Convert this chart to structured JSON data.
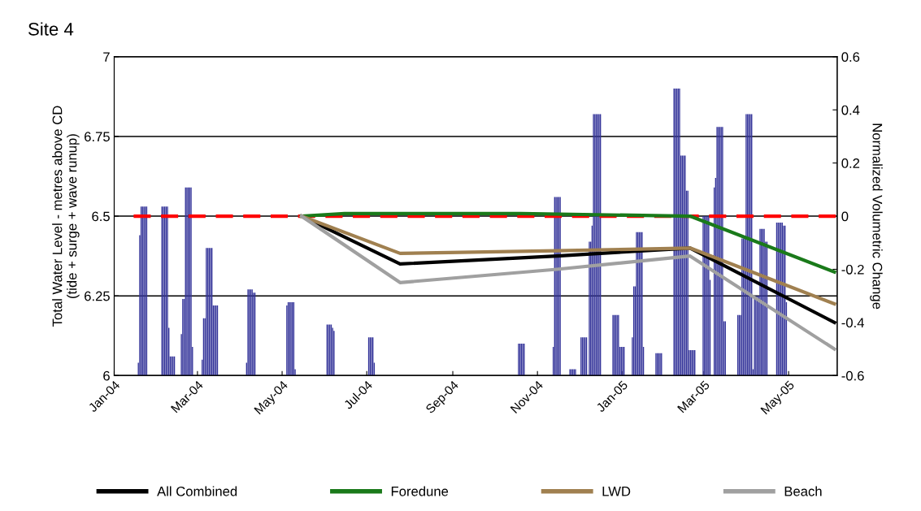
{
  "chart_data": {
    "type": "line",
    "title": "Site 4",
    "ylabel": "Total Water Level - metres above CD\n(tide + surge + wave runup)",
    "y2label": "Normalized Volumetric Change",
    "xlim": [
      "2004-01-01",
      "2005-06-05"
    ],
    "xticks": [
      {
        "value": "2004-01-01",
        "label": "Jan-04"
      },
      {
        "value": "2004-03-01",
        "label": "Mar-04"
      },
      {
        "value": "2004-05-01",
        "label": "May-04"
      },
      {
        "value": "2004-07-01",
        "label": "Jul-04"
      },
      {
        "value": "2004-09-01",
        "label": "Sep-04"
      },
      {
        "value": "2004-11-01",
        "label": "Nov-04"
      },
      {
        "value": "2005-01-01",
        "label": "Jan-05"
      },
      {
        "value": "2005-03-01",
        "label": "Mar-05"
      },
      {
        "value": "2005-05-01",
        "label": "May-05"
      }
    ],
    "ylim": [
      6,
      7
    ],
    "yticks": [
      6,
      6.25,
      6.5,
      6.75,
      7
    ],
    "y2lim": [
      -0.6,
      0.6
    ],
    "y2ticks": [
      -0.6,
      -0.4,
      -0.2,
      0,
      0.2,
      0.4,
      0.6
    ],
    "grid": "y",
    "legend": "bottom",
    "series": [
      {
        "type": "bar",
        "axis": "y",
        "color": "#333399",
        "x": [
          "2004-01-18",
          "2004-01-19",
          "2004-01-20",
          "2004-01-21",
          "2004-01-22",
          "2004-01-23",
          "2004-01-24",
          "2004-02-04",
          "2004-02-05",
          "2004-02-06",
          "2004-02-07",
          "2004-02-08",
          "2004-02-09",
          "2004-02-10",
          "2004-02-11",
          "2004-02-12",
          "2004-02-13",
          "2004-02-18",
          "2004-02-19",
          "2004-02-20",
          "2004-02-21",
          "2004-02-22",
          "2004-02-23",
          "2004-02-24",
          "2004-02-25",
          "2004-02-26",
          "2004-03-04",
          "2004-03-05",
          "2004-03-06",
          "2004-03-07",
          "2004-03-08",
          "2004-03-09",
          "2004-03-10",
          "2004-03-11",
          "2004-03-12",
          "2004-03-13",
          "2004-03-14",
          "2004-03-15",
          "2004-04-05",
          "2004-04-06",
          "2004-04-07",
          "2004-04-08",
          "2004-04-09",
          "2004-04-10",
          "2004-04-11",
          "2004-05-04",
          "2004-05-05",
          "2004-05-06",
          "2004-05-07",
          "2004-05-08",
          "2004-05-09",
          "2004-05-10",
          "2004-06-02",
          "2004-06-03",
          "2004-06-04",
          "2004-06-05",
          "2004-06-06",
          "2004-06-07",
          "2004-07-02",
          "2004-07-03",
          "2004-07-04",
          "2004-07-05",
          "2004-07-06",
          "2004-10-18",
          "2004-10-19",
          "2004-10-20",
          "2004-10-21",
          "2004-10-22",
          "2004-11-12",
          "2004-11-13",
          "2004-11-14",
          "2004-11-15",
          "2004-11-16",
          "2004-11-17",
          "2004-11-24",
          "2004-11-25",
          "2004-11-26",
          "2004-11-27",
          "2004-11-28",
          "2004-12-02",
          "2004-12-03",
          "2004-12-04",
          "2004-12-05",
          "2004-12-06",
          "2004-12-08",
          "2004-12-09",
          "2004-12-10",
          "2004-12-11",
          "2004-12-12",
          "2004-12-13",
          "2004-12-14",
          "2004-12-15",
          "2004-12-16",
          "2004-12-25",
          "2004-12-26",
          "2004-12-27",
          "2004-12-28",
          "2004-12-29",
          "2004-12-30",
          "2004-12-31",
          "2005-01-01",
          "2005-01-02",
          "2005-01-08",
          "2005-01-09",
          "2005-01-10",
          "2005-01-11",
          "2005-01-12",
          "2005-01-13",
          "2005-01-14",
          "2005-01-15",
          "2005-01-16",
          "2005-01-25",
          "2005-01-26",
          "2005-01-27",
          "2005-01-28",
          "2005-01-29",
          "2005-02-07",
          "2005-02-08",
          "2005-02-09",
          "2005-02-10",
          "2005-02-11",
          "2005-02-12",
          "2005-02-13",
          "2005-02-14",
          "2005-02-15",
          "2005-02-16",
          "2005-02-17",
          "2005-02-18",
          "2005-02-19",
          "2005-02-20",
          "2005-02-21",
          "2005-02-22",
          "2005-02-28",
          "2005-03-01",
          "2005-03-02",
          "2005-03-03",
          "2005-03-04",
          "2005-03-05",
          "2005-03-08",
          "2005-03-09",
          "2005-03-10",
          "2005-03-11",
          "2005-03-12",
          "2005-03-13",
          "2005-03-14",
          "2005-03-15",
          "2005-03-16",
          "2005-03-25",
          "2005-03-26",
          "2005-03-27",
          "2005-03-28",
          "2005-03-29",
          "2005-03-30",
          "2005-03-31",
          "2005-04-01",
          "2005-04-02",
          "2005-04-03",
          "2005-04-04",
          "2005-04-05",
          "2005-04-06",
          "2005-04-07",
          "2005-04-08",
          "2005-04-09",
          "2005-04-10",
          "2005-04-11",
          "2005-04-12",
          "2005-04-13",
          "2005-04-14",
          "2005-04-15",
          "2005-04-22",
          "2005-04-23",
          "2005-04-24",
          "2005-04-25",
          "2005-04-26",
          "2005-04-27",
          "2005-04-28",
          "2005-04-29"
        ],
        "values": [
          6.04,
          6.44,
          6.53,
          6.53,
          6.53,
          6.53,
          6.53,
          6.53,
          6.53,
          6.53,
          6.53,
          6.53,
          6.15,
          6.06,
          6.06,
          6.06,
          6.06,
          6.13,
          6.24,
          6.24,
          6.59,
          6.59,
          6.59,
          6.59,
          6.59,
          6.09,
          6.05,
          6.18,
          6.18,
          6.4,
          6.4,
          6.4,
          6.4,
          6.4,
          6.22,
          6.22,
          6.22,
          6.22,
          6.04,
          6.27,
          6.27,
          6.27,
          6.27,
          6.26,
          6.26,
          6.22,
          6.23,
          6.23,
          6.23,
          6.23,
          6.23,
          6.02,
          6.16,
          6.16,
          6.16,
          6.16,
          6.15,
          6.14,
          6.12,
          6.12,
          6.12,
          6.12,
          6.04,
          6.1,
          6.1,
          6.1,
          6.1,
          6.1,
          6.09,
          6.56,
          6.56,
          6.56,
          6.56,
          6.56,
          6.02,
          6.02,
          6.02,
          6.02,
          6.02,
          6.12,
          6.12,
          6.12,
          6.12,
          6.12,
          6.42,
          6.42,
          6.47,
          6.82,
          6.82,
          6.82,
          6.82,
          6.82,
          6.82,
          6.19,
          6.19,
          6.19,
          6.19,
          6.19,
          6.09,
          6.09,
          6.09,
          6.09,
          6.12,
          6.28,
          6.28,
          6.45,
          6.45,
          6.45,
          6.45,
          6.45,
          6.09,
          6.07,
          6.07,
          6.07,
          6.07,
          6.07,
          6.9,
          6.9,
          6.9,
          6.9,
          6.9,
          6.69,
          6.69,
          6.69,
          6.69,
          6.58,
          6.58,
          6.08,
          6.08,
          6.08,
          6.08,
          6.08,
          6.5,
          6.5,
          6.5,
          6.5,
          6.5,
          6.3,
          6.59,
          6.62,
          6.78,
          6.78,
          6.78,
          6.78,
          6.78,
          6.17,
          6.17,
          6.19,
          6.19,
          6.19,
          6.43,
          6.43,
          6.43,
          6.82,
          6.82,
          6.82,
          6.82,
          6.82,
          6.02,
          6.25,
          6.25,
          6.25,
          6.25,
          6.46,
          6.46,
          6.46,
          6.46,
          6.42,
          6.42,
          6.48,
          6.48,
          6.48,
          6.48,
          6.48,
          6.47,
          6.47,
          6.23
        ]
      },
      {
        "axis": "y2",
        "color": "#ff0000",
        "line_style": "dashed",
        "x": [
          "2004-01-15",
          "2005-06-04"
        ],
        "values": [
          0,
          0
        ]
      },
      {
        "axis": "y2",
        "name": "All Combined",
        "color": "#000000",
        "x": [
          "2004-05-15",
          "2004-07-25",
          "2004-11-15",
          "2005-02-19",
          "2005-06-03"
        ],
        "values": [
          0,
          -0.18,
          -0.15,
          -0.12,
          -0.4
        ]
      },
      {
        "axis": "y2",
        "name": "Foredune",
        "color": "#1a7a1a",
        "x": [
          "2004-05-15",
          "2004-06-15",
          "2004-10-20",
          "2005-02-19",
          "2005-06-03"
        ],
        "values": [
          0,
          0.01,
          0.01,
          0,
          -0.21
        ]
      },
      {
        "axis": "y2",
        "name": "LWD",
        "color": "#a08050",
        "x": [
          "2004-05-15",
          "2004-07-25",
          "2004-11-15",
          "2005-02-19",
          "2005-06-03"
        ],
        "values": [
          0,
          -0.14,
          -0.13,
          -0.12,
          -0.33
        ]
      },
      {
        "axis": "y2",
        "name": "Beach",
        "color": "#a0a0a0",
        "x": [
          "2004-05-15",
          "2004-07-25",
          "2004-11-15",
          "2005-02-19",
          "2005-06-03"
        ],
        "values": [
          0,
          -0.25,
          -0.2,
          -0.15,
          -0.5
        ]
      }
    ]
  }
}
